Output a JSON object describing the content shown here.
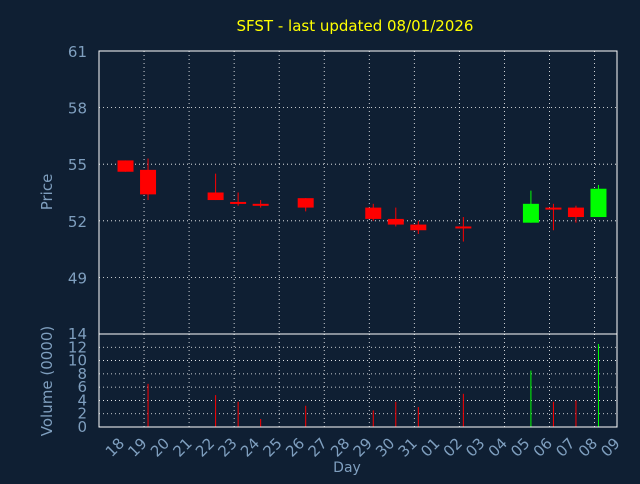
{
  "colors": {
    "background": "#0f1f33",
    "frame": "#ffffff",
    "grid": "#ffffff",
    "title": "#ffff00",
    "label": "#7f9fbf",
    "tick_text": "#7f9fbf",
    "up": "#00ff00",
    "down": "#ff0000"
  },
  "chart_data": {
    "type": "candlestick",
    "title": "SFST - last updated 08/01/2026",
    "xlabel": "Day",
    "price_ylabel": "Price",
    "volume_ylabel": "Volume (0000)",
    "x_ticks": [
      "18",
      "19",
      "20",
      "21",
      "22",
      "23",
      "24",
      "25",
      "26",
      "27",
      "28",
      "29",
      "30",
      "31",
      "01",
      "02",
      "03",
      "04",
      "05",
      "06",
      "07",
      "08",
      "09"
    ],
    "price_ylim": [
      46,
      61
    ],
    "price_yticks": [
      49,
      52,
      55,
      58,
      61
    ],
    "volume_ylim": [
      0,
      14
    ],
    "volume_yticks": [
      0,
      2,
      4,
      6,
      8,
      10,
      12,
      14
    ],
    "grid": true,
    "candles": [
      {
        "day": "18",
        "open": 55.2,
        "high": 55.2,
        "low": 54.6,
        "close": 54.6,
        "volume": 0
      },
      {
        "day": "19",
        "open": 54.7,
        "high": 55.3,
        "low": 53.1,
        "close": 53.4,
        "volume": 6.5
      },
      {
        "day": "22",
        "open": 53.5,
        "high": 54.5,
        "low": 53.1,
        "close": 53.1,
        "volume": 4.8
      },
      {
        "day": "23",
        "open": 53.0,
        "high": 53.5,
        "low": 52.8,
        "close": 52.9,
        "volume": 3.8
      },
      {
        "day": "24",
        "open": 52.9,
        "high": 53.1,
        "low": 52.7,
        "close": 52.8,
        "volume": 1.2
      },
      {
        "day": "26",
        "open": 53.2,
        "high": 53.2,
        "low": 52.5,
        "close": 52.7,
        "volume": 3.2
      },
      {
        "day": "29",
        "open": 52.7,
        "high": 52.9,
        "low": 52.0,
        "close": 52.1,
        "volume": 2.5
      },
      {
        "day": "30",
        "open": 52.1,
        "high": 52.7,
        "low": 51.7,
        "close": 51.8,
        "volume": 3.8
      },
      {
        "day": "31",
        "open": 51.8,
        "high": 52.0,
        "low": 51.3,
        "close": 51.5,
        "volume": 3.0
      },
      {
        "day": "02",
        "open": 51.7,
        "high": 52.2,
        "low": 50.9,
        "close": 51.6,
        "volume": 5.0
      },
      {
        "day": "05",
        "open": 51.9,
        "high": 53.6,
        "low": 51.9,
        "close": 52.9,
        "volume": 8.5
      },
      {
        "day": "06",
        "open": 52.7,
        "high": 52.9,
        "low": 51.5,
        "close": 52.6,
        "volume": 3.8
      },
      {
        "day": "07",
        "open": 52.7,
        "high": 52.8,
        "low": 51.9,
        "close": 52.2,
        "volume": 4.0
      },
      {
        "day": "08",
        "open": 52.2,
        "high": 53.9,
        "low": 52.2,
        "close": 53.7,
        "volume": 12.5
      }
    ]
  }
}
